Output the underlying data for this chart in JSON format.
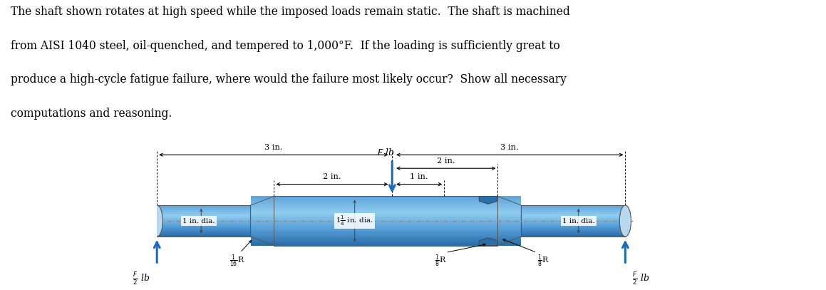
{
  "bg_color": "#ffffff",
  "text_color": "#000000",
  "shaft_color_light": "#b8d8f0",
  "shaft_color_mid": "#5ba3dc",
  "shaft_color_dark": "#2a6eaa",
  "shaft_color_gradient_top": "#a0cce8",
  "arrow_color": "#1a6abf",
  "paragraph_lines": [
    "The shaft shown rotates at high speed while the imposed loads remain static.  The shaft is machined",
    "from AISI 1040 steel, oil-quenched, and tempered to 1,000°F.  If the loading is sufficiently great to",
    "produce a high-cycle fatigue failure, where would the failure most likely occur?  Show all necessary",
    "computations and reasoning."
  ],
  "fig_width": 11.59,
  "fig_height": 4.07,
  "dpi": 100
}
